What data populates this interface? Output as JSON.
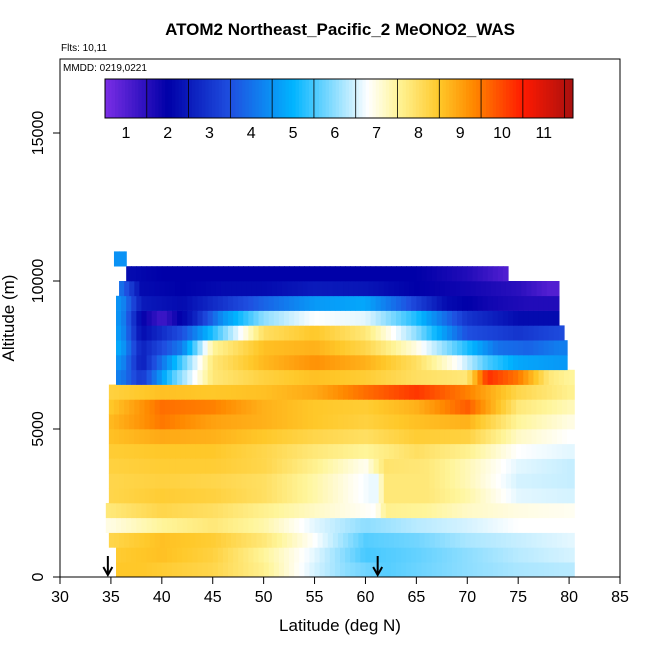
{
  "chart_data": {
    "type": "heatmap",
    "title": "ATOM2 Northeast_Pacific_2 MeONO2_WAS",
    "annotations": [
      "Flts: 10,11",
      "MMDD: 0219,0221"
    ],
    "xlabel": "Latitude (deg N)",
    "ylabel": "Altitude (m)",
    "xlim": [
      30,
      85
    ],
    "ylim": [
      0,
      17500
    ],
    "x_ticks": [
      30,
      35,
      40,
      45,
      50,
      55,
      60,
      65,
      70,
      75,
      80,
      85
    ],
    "y_ticks": [
      0,
      5000,
      10000,
      15000
    ],
    "grid": false,
    "colorbar": {
      "placement": "top-inset",
      "range": [
        0.5,
        11.7
      ],
      "ticks": [
        1,
        2,
        3,
        4,
        5,
        6,
        7,
        8,
        9,
        10,
        11
      ],
      "colors": [
        "#7b2ee6",
        "#0000a8",
        "#1f4fe0",
        "#00b4ff",
        "#ffffff",
        "#fff59a",
        "#ffc829",
        "#ff8a00",
        "#ff1a00",
        "#a81010"
      ],
      "stops": [
        0.5,
        2.0,
        3.5,
        5.0,
        6.8,
        7.5,
        8.5,
        9.3,
        10.5,
        11.7
      ]
    },
    "markers": {
      "arrows_at_latitude": [
        34.7,
        61.2
      ]
    },
    "data_extent": {
      "lat_range": [
        34.5,
        80.5
      ],
      "alt_range": [
        0,
        11000
      ]
    },
    "layers": [
      {
        "alt": [
          0,
          500
        ],
        "lat": [
          35.5,
          80.5
        ],
        "values": [
          [
            35,
            8.5
          ],
          [
            38,
            8.5
          ],
          [
            45,
            8.2
          ],
          [
            50,
            7.6
          ],
          [
            55,
            6.5
          ],
          [
            58,
            6
          ],
          [
            62,
            5.6
          ],
          [
            66,
            5.8
          ],
          [
            70,
            6
          ],
          [
            75,
            6.2
          ],
          [
            80,
            6.3
          ]
        ]
      },
      {
        "alt": [
          500,
          1000
        ],
        "lat": [
          35.5,
          80.5
        ],
        "values": [
          [
            35,
            8.4
          ],
          [
            40,
            8.6
          ],
          [
            45,
            8.3
          ],
          [
            50,
            7.5
          ],
          [
            55,
            6.6
          ],
          [
            60,
            5.5
          ],
          [
            65,
            5.7
          ],
          [
            70,
            6
          ],
          [
            75,
            6.3
          ],
          [
            80,
            6.5
          ]
        ]
      },
      {
        "alt": [
          1000,
          1500
        ],
        "lat": [
          34.8,
          80.5
        ],
        "values": [
          [
            35,
            8.2
          ],
          [
            40,
            8.6
          ],
          [
            45,
            8.4
          ],
          [
            50,
            7.8
          ],
          [
            55,
            6.8
          ],
          [
            60,
            5.6
          ],
          [
            65,
            5.8
          ],
          [
            70,
            6.2
          ],
          [
            75,
            6.4
          ],
          [
            80,
            6.6
          ]
        ]
      },
      {
        "alt": [
          1500,
          2000
        ],
        "lat": [
          34.5,
          80.5
        ],
        "values": [
          [
            35,
            7
          ],
          [
            40,
            7.5
          ],
          [
            45,
            7.8
          ],
          [
            50,
            7.4
          ],
          [
            55,
            6.6
          ],
          [
            60,
            6
          ],
          [
            65,
            6.3
          ],
          [
            70,
            6.5
          ],
          [
            75,
            6.8
          ],
          [
            80,
            6.8
          ]
        ]
      },
      {
        "alt": [
          2000,
          2500
        ],
        "lat": [
          34.5,
          80.5
        ],
        "values": [
          [
            35,
            7.8
          ],
          [
            40,
            8.2
          ],
          [
            45,
            8
          ],
          [
            50,
            7.6
          ],
          [
            55,
            7.2
          ],
          [
            61,
            6.8
          ],
          [
            62,
            7.6
          ],
          [
            66,
            7.5
          ],
          [
            70,
            7.2
          ],
          [
            75,
            7
          ],
          [
            80,
            6.9
          ]
        ]
      },
      {
        "alt": [
          2500,
          3000
        ],
        "lat": [
          34.8,
          80.5
        ],
        "values": [
          [
            35,
            8.2
          ],
          [
            40,
            8.4
          ],
          [
            45,
            8.3
          ],
          [
            50,
            8
          ],
          [
            55,
            7.4
          ],
          [
            61,
            6.6
          ],
          [
            62,
            7.8
          ],
          [
            66,
            7.8
          ],
          [
            70,
            7.4
          ],
          [
            75,
            6.6
          ],
          [
            80,
            6.5
          ]
        ]
      },
      {
        "alt": [
          3000,
          3500
        ],
        "lat": [
          34.8,
          80.5
        ],
        "values": [
          [
            35,
            8.2
          ],
          [
            40,
            8.3
          ],
          [
            45,
            8.2
          ],
          [
            50,
            8
          ],
          [
            55,
            7.4
          ],
          [
            61,
            6.6
          ],
          [
            62,
            7.8
          ],
          [
            66,
            7.8
          ],
          [
            70,
            7.3
          ],
          [
            75,
            6.5
          ],
          [
            80,
            6.4
          ]
        ]
      },
      {
        "alt": [
          3500,
          4000
        ],
        "lat": [
          34.8,
          80.5
        ],
        "values": [
          [
            35,
            8.3
          ],
          [
            40,
            8.4
          ],
          [
            45,
            8.4
          ],
          [
            50,
            8.2
          ],
          [
            55,
            7.6
          ],
          [
            60,
            6.9
          ],
          [
            62,
            7.9
          ],
          [
            66,
            7.8
          ],
          [
            70,
            7.3
          ],
          [
            75,
            6.6
          ],
          [
            80,
            6.4
          ]
        ]
      },
      {
        "alt": [
          4000,
          4500
        ],
        "lat": [
          34.8,
          80.5
        ],
        "values": [
          [
            35,
            8.4
          ],
          [
            40,
            8.5
          ],
          [
            45,
            8.5
          ],
          [
            50,
            8.2
          ],
          [
            55,
            7.8
          ],
          [
            60,
            7.5
          ],
          [
            65,
            8
          ],
          [
            70,
            7.6
          ],
          [
            75,
            6.8
          ],
          [
            80,
            6.6
          ]
        ]
      },
      {
        "alt": [
          4500,
          5000
        ],
        "lat": [
          34.8,
          80.5
        ],
        "values": [
          [
            35,
            8.6
          ],
          [
            40,
            8.9
          ],
          [
            45,
            8.8
          ],
          [
            50,
            8.5
          ],
          [
            55,
            8.2
          ],
          [
            60,
            8
          ],
          [
            65,
            8.4
          ],
          [
            70,
            8.3
          ],
          [
            75,
            7.2
          ],
          [
            80,
            6.8
          ]
        ]
      },
      {
        "alt": [
          5000,
          5500
        ],
        "lat": [
          34.8,
          80.5
        ],
        "values": [
          [
            35,
            8.7
          ],
          [
            40,
            9.5
          ],
          [
            45,
            9
          ],
          [
            50,
            8.8
          ],
          [
            55,
            8.5
          ],
          [
            60,
            8.3
          ],
          [
            65,
            8.6
          ],
          [
            70,
            8.8
          ],
          [
            75,
            7.5
          ],
          [
            80,
            7
          ]
        ]
      },
      {
        "alt": [
          5500,
          6000
        ],
        "lat": [
          34.8,
          80.5
        ],
        "values": [
          [
            35,
            8.5
          ],
          [
            40,
            9.6
          ],
          [
            45,
            9.4
          ],
          [
            50,
            8.8
          ],
          [
            55,
            8.5
          ],
          [
            60,
            8.4
          ],
          [
            65,
            8.8
          ],
          [
            70,
            9.8
          ],
          [
            75,
            7.8
          ],
          [
            80,
            7.3
          ]
        ]
      },
      {
        "alt": [
          6000,
          6500
        ],
        "lat": [
          34.8,
          80.5
        ],
        "values": [
          [
            35,
            8.3
          ],
          [
            40,
            8.6
          ],
          [
            45,
            8.5
          ],
          [
            50,
            8.6
          ],
          [
            55,
            8.9
          ],
          [
            60,
            9.6
          ],
          [
            65,
            10.2
          ],
          [
            70,
            9.4
          ],
          [
            75,
            8.2
          ],
          [
            80,
            7.6
          ]
        ]
      },
      {
        "alt": [
          6500,
          7000
        ],
        "lat": [
          35.5,
          80.5
        ],
        "values": [
          [
            36,
            4.2
          ],
          [
            38,
            3
          ],
          [
            41,
            5.5
          ],
          [
            45,
            7.8
          ],
          [
            50,
            8.3
          ],
          [
            55,
            8.6
          ],
          [
            60,
            8.4
          ],
          [
            65,
            8
          ],
          [
            70,
            7.8
          ],
          [
            72,
            10.3
          ],
          [
            75,
            9.5
          ],
          [
            78,
            7.8
          ],
          [
            80,
            7.5
          ]
        ]
      },
      {
        "alt": [
          7000,
          7500
        ],
        "lat": [
          35.5,
          79.8
        ],
        "values": [
          [
            36,
            4.5
          ],
          [
            38,
            2.5
          ],
          [
            41,
            4.8
          ],
          [
            45,
            7.8
          ],
          [
            50,
            8.7
          ],
          [
            55,
            9.2
          ],
          [
            60,
            8.8
          ],
          [
            65,
            8
          ],
          [
            69,
            6.8
          ],
          [
            72,
            5.5
          ],
          [
            75,
            4.8
          ],
          [
            79,
            4.6
          ]
        ]
      },
      {
        "alt": [
          7500,
          8000
        ],
        "lat": [
          35.5,
          79.8
        ],
        "values": [
          [
            36,
            4.8
          ],
          [
            38,
            2.6
          ],
          [
            42,
            4.2
          ],
          [
            45,
            7.5
          ],
          [
            50,
            8.6
          ],
          [
            55,
            8.8
          ],
          [
            60,
            8.2
          ],
          [
            65,
            7
          ],
          [
            70,
            5.2
          ],
          [
            73,
            4
          ],
          [
            76,
            3.8
          ],
          [
            79,
            4.2
          ]
        ]
      },
      {
        "alt": [
          8000,
          8500
        ],
        "lat": [
          35.5,
          79.5
        ],
        "values": [
          [
            36,
            4.6
          ],
          [
            38,
            2.2
          ],
          [
            42,
            3.5
          ],
          [
            46,
            5.8
          ],
          [
            50,
            8
          ],
          [
            55,
            8.5
          ],
          [
            60,
            7.8
          ],
          [
            65,
            6
          ],
          [
            70,
            3.5
          ],
          [
            75,
            3
          ],
          [
            79,
            3.4
          ]
        ]
      },
      {
        "alt": [
          8500,
          9000
        ],
        "lat": [
          35.5,
          79.0
        ],
        "values": [
          [
            36,
            4.5
          ],
          [
            38,
            2
          ],
          [
            40,
            1.2
          ],
          [
            43,
            2.5
          ],
          [
            46,
            4.5
          ],
          [
            50,
            6
          ],
          [
            55,
            6.8
          ],
          [
            60,
            6.6
          ],
          [
            65,
            5.2
          ],
          [
            70,
            3
          ],
          [
            75,
            2.2
          ],
          [
            79,
            2.2
          ]
        ]
      },
      {
        "alt": [
          9000,
          9500
        ],
        "lat": [
          35.5,
          79.0
        ],
        "values": [
          [
            36,
            4.5
          ],
          [
            38,
            2.5
          ],
          [
            42,
            2.2
          ],
          [
            46,
            3
          ],
          [
            50,
            3.8
          ],
          [
            55,
            4.6
          ],
          [
            60,
            4.8
          ],
          [
            64,
            3.6
          ],
          [
            68,
            2.2
          ],
          [
            72,
            1.8
          ],
          [
            76,
            1.6
          ],
          [
            79,
            1.6
          ]
        ]
      },
      {
        "alt": [
          9500,
          10000
        ],
        "lat": [
          35.8,
          79.0
        ],
        "values": [
          [
            36,
            4
          ],
          [
            38,
            2.2
          ],
          [
            42,
            2
          ],
          [
            46,
            2.2
          ],
          [
            50,
            2.2
          ],
          [
            55,
            2.5
          ],
          [
            60,
            2.4
          ],
          [
            65,
            2
          ],
          [
            70,
            1.8
          ],
          [
            75,
            1.5
          ],
          [
            78,
            1
          ]
        ]
      },
      {
        "alt": [
          10000,
          10500
        ],
        "lat": [
          36.5,
          74.0
        ],
        "values": [
          [
            37,
            2.2
          ],
          [
            40,
            2
          ],
          [
            45,
            2
          ],
          [
            50,
            2
          ],
          [
            55,
            2
          ],
          [
            60,
            2
          ],
          [
            65,
            2
          ],
          [
            70,
            1.6
          ],
          [
            74,
            1
          ]
        ]
      },
      {
        "alt": [
          10500,
          11000
        ],
        "lat": [
          35.3,
          36.5
        ],
        "values": [
          [
            35.5,
            4.5
          ],
          [
            36.3,
            4.5
          ]
        ]
      }
    ]
  }
}
